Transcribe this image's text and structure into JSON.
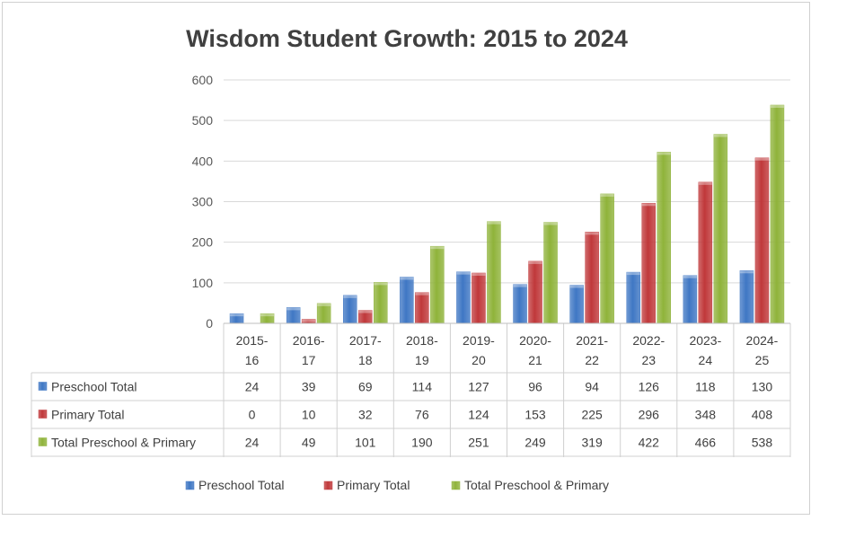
{
  "chart_data": {
    "type": "bar",
    "title": "Wisdom Student Growth: 2015 to 2024",
    "categories": [
      "2015-16",
      "2016-17",
      "2017-18",
      "2018-19",
      "2019-20",
      "2020-21",
      "2021-22",
      "2022-23",
      "2023-24",
      "2024-25"
    ],
    "category_lines": [
      [
        "2015-",
        "16"
      ],
      [
        "2016-",
        "17"
      ],
      [
        "2017-",
        "18"
      ],
      [
        "2018-",
        "19"
      ],
      [
        "2019-",
        "20"
      ],
      [
        "2020-",
        "21"
      ],
      [
        "2021-",
        "22"
      ],
      [
        "2022-",
        "23"
      ],
      [
        "2023-",
        "24"
      ],
      [
        "2024-",
        "25"
      ]
    ],
    "series": [
      {
        "name": "Preschool Total",
        "color": "#3f77c4",
        "values": [
          24,
          39,
          69,
          114,
          127,
          96,
          94,
          126,
          118,
          130
        ]
      },
      {
        "name": "Primary Total",
        "color": "#c0383a",
        "values": [
          0,
          10,
          32,
          76,
          124,
          153,
          225,
          296,
          348,
          408
        ]
      },
      {
        "name": "Total Preschool & Primary",
        "color": "#8fb33a",
        "values": [
          24,
          49,
          101,
          190,
          251,
          249,
          319,
          422,
          466,
          538
        ]
      }
    ],
    "ylim": [
      0,
      600
    ],
    "yticks": [
      "0",
      "100",
      "200",
      "300",
      "400",
      "500",
      "600"
    ],
    "grid": true,
    "legend_position": "bottom",
    "data_table": true
  }
}
